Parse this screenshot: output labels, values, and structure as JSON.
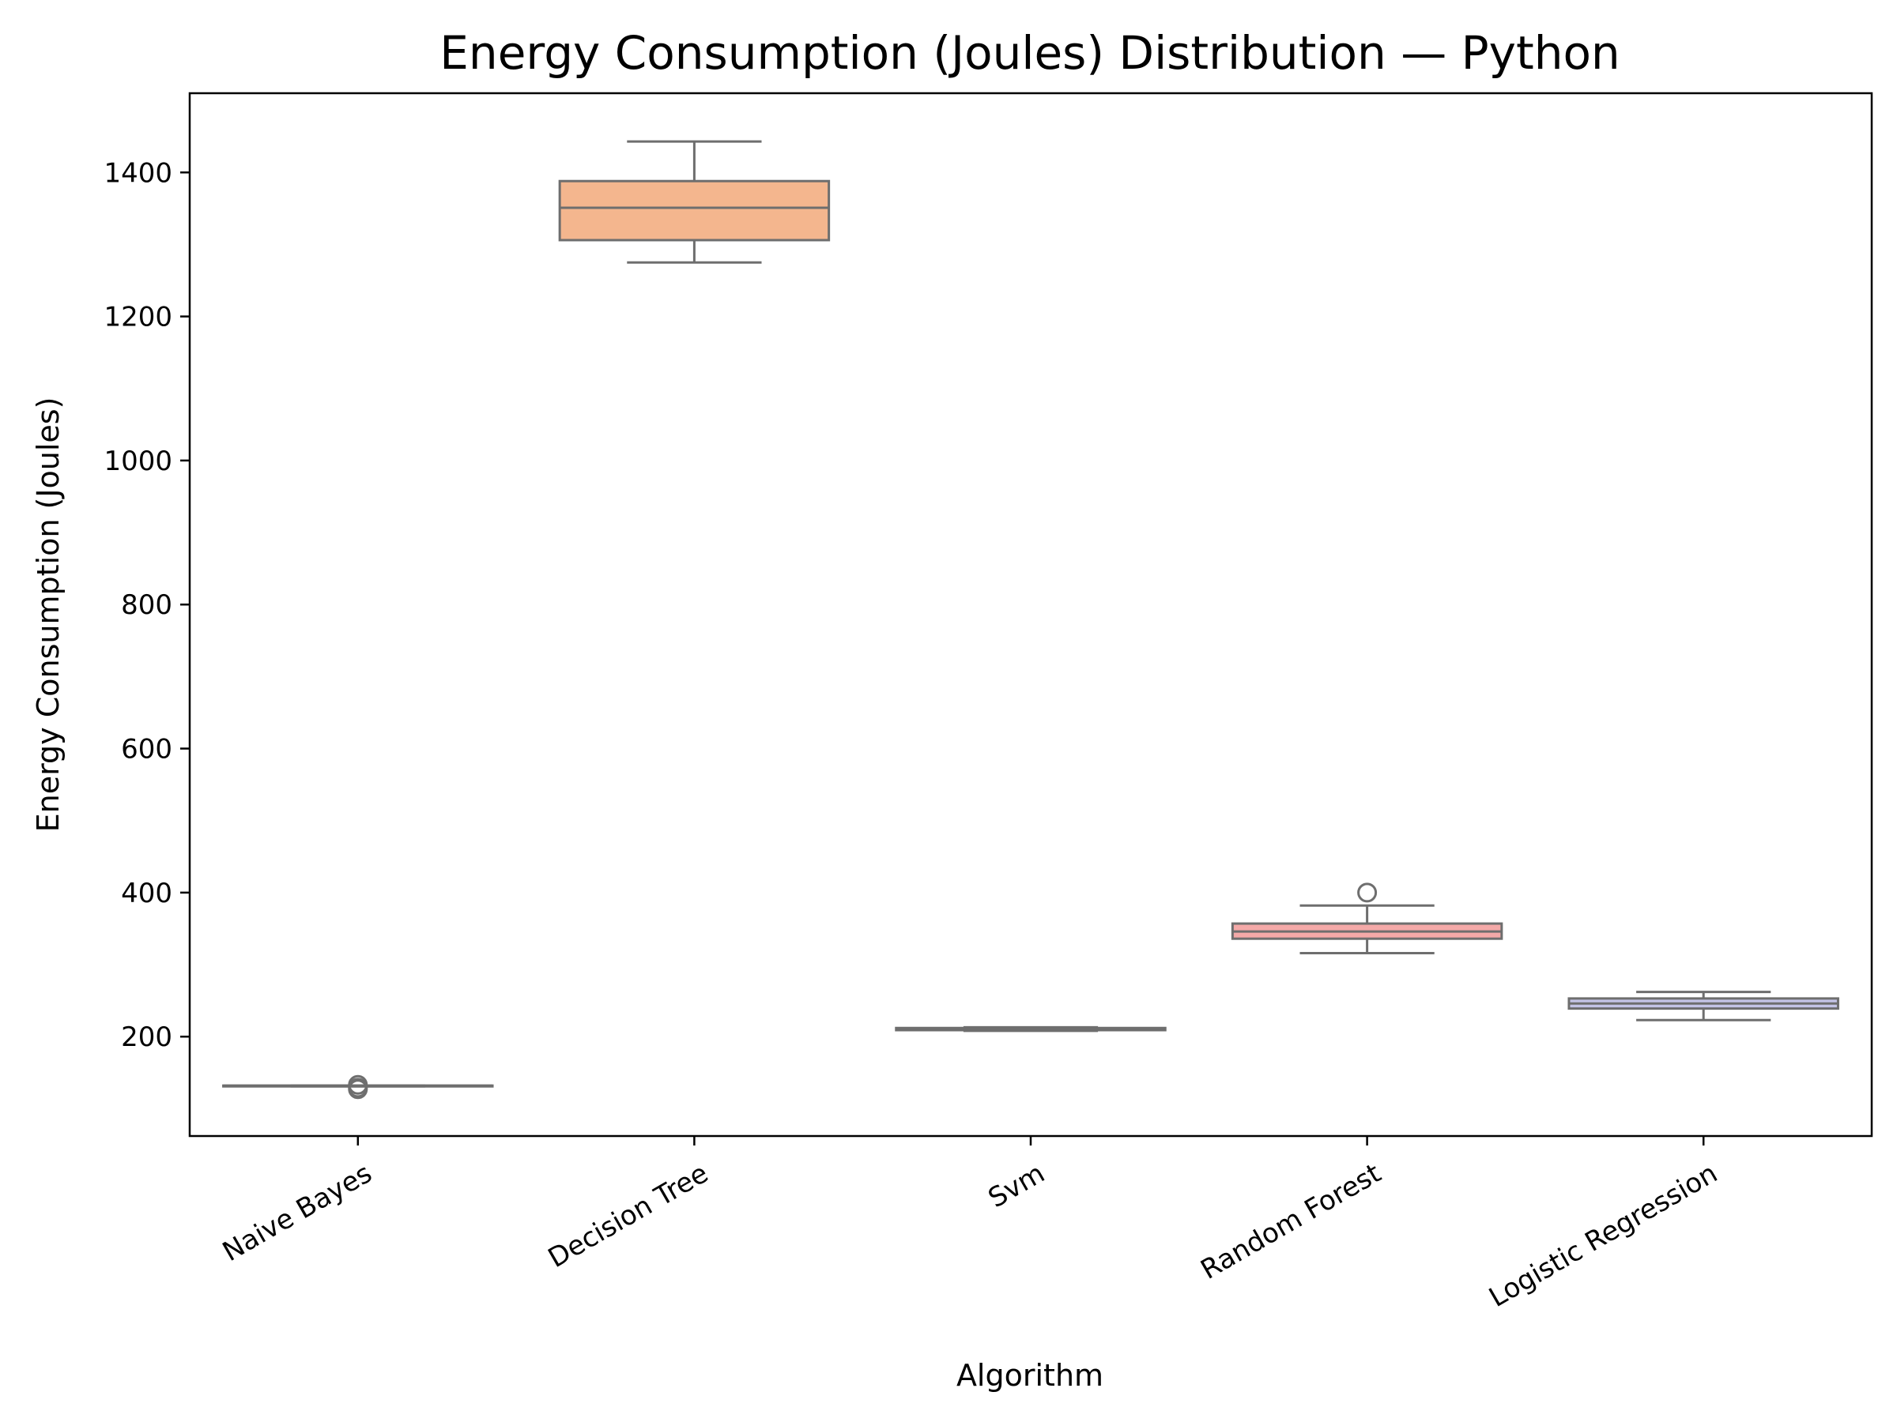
{
  "chart_data": {
    "type": "box",
    "title": "Energy Consumption (Joules) Distribution — Python",
    "xlabel": "Algorithm",
    "ylabel": "Energy Consumption (Joules)",
    "ylim": [
      62,
      1510
    ],
    "yticks": [
      200,
      400,
      600,
      800,
      1000,
      1200,
      1400
    ],
    "grid": false,
    "legend": "none",
    "categories": [
      "Naive Bayes",
      "Decision Tree",
      "Svm",
      "Random Forest",
      "Logistic Regression"
    ],
    "boxes": [
      {
        "category": "Naive Bayes",
        "whisker_low": 131,
        "q1": 131,
        "median": 132,
        "q3": 132,
        "whisker_high": 132,
        "outliers": [
          127,
          129,
          133
        ],
        "color": "#a6cee3"
      },
      {
        "category": "Decision Tree",
        "whisker_low": 1275,
        "q1": 1306,
        "median": 1351,
        "q3": 1388,
        "whisker_high": 1443,
        "outliers": [],
        "color": "#f4b68e"
      },
      {
        "category": "Svm",
        "whisker_low": 208,
        "q1": 209,
        "median": 211,
        "q3": 212,
        "whisker_high": 213,
        "outliers": [],
        "color": "#b8dba4"
      },
      {
        "category": "Random Forest",
        "whisker_low": 316,
        "q1": 336,
        "median": 346,
        "q3": 357,
        "whisker_high": 382,
        "outliers": [
          400
        ],
        "color": "#f4a9a8"
      },
      {
        "category": "Logistic Regression",
        "whisker_low": 223,
        "q1": 239,
        "median": 246,
        "q3": 253,
        "whisker_high": 262,
        "outliers": [],
        "color": "#c4c4e6"
      }
    ],
    "line_color": "#6e6e6e"
  }
}
